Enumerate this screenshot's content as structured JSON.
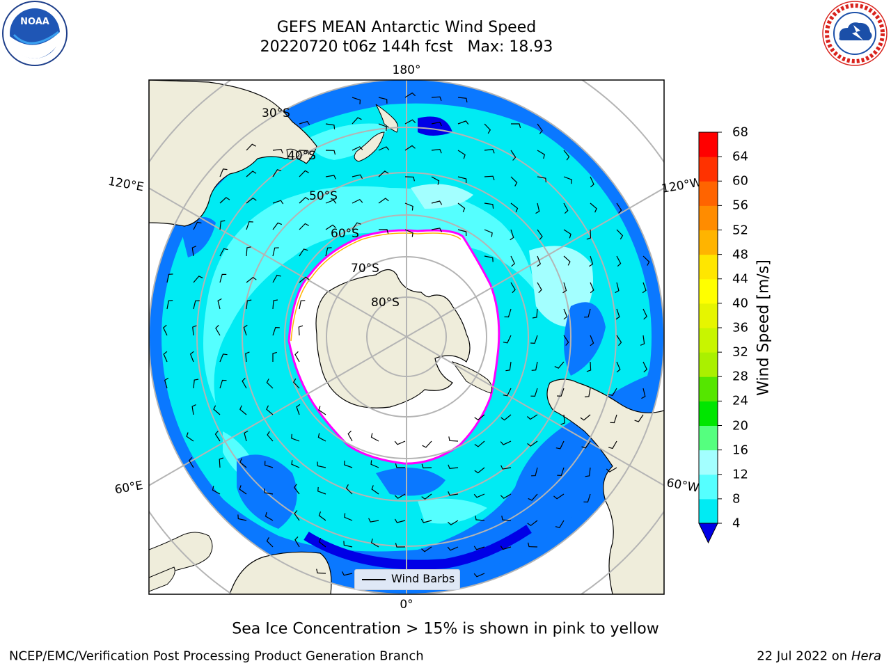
{
  "title": {
    "line1": "GEFS MEAN Antarctic Wind Speed",
    "line2": "20220720 t06z 144h fcst   Max: 18.93"
  },
  "logos": {
    "left": "NOAA",
    "left_ring_text": "NATIONAL OCEANIC AND ATMOSPHERIC ADMINISTRATION · U.S. DEPARTMENT OF COMMERCE",
    "right_ring_text": "NATIONAL WEATHER SERVICE"
  },
  "map": {
    "projection": "south-polar-stereographic",
    "longitude_labels": {
      "top": "180°",
      "bottom": "0°",
      "upper_left": "120°E",
      "upper_right": "120°W",
      "lower_left": "60°E",
      "lower_right": "60°W"
    },
    "latitude_labels": [
      "30°S",
      "40°S",
      "50°S",
      "60°S",
      "70°S",
      "80°S"
    ],
    "legend": "Wind Barbs",
    "colors": {
      "land": "#efeddb",
      "ocean_0_4": "#0000e6",
      "ocean_4_8": "#0a78ff",
      "ocean_8_12": "#00ebf3",
      "ocean_12_16": "#55ffff",
      "ocean_16_20": "#a3ffff",
      "ice_edge": "#ff00ff",
      "ice_fill": "#ffffff",
      "grid": "#b4b4b4"
    }
  },
  "colorbar": {
    "label": "Wind Speed [m/s]",
    "ticks": [
      "4",
      "8",
      "12",
      "16",
      "20",
      "24",
      "28",
      "32",
      "36",
      "40",
      "44",
      "48",
      "52",
      "56",
      "60",
      "64",
      "68"
    ],
    "colors": [
      "#0a78ff",
      "#00ebf3",
      "#55ffff",
      "#a3ffff",
      "#55ff7f",
      "#00e600",
      "#55e600",
      "#aaf000",
      "#c8f500",
      "#e6f500",
      "#ffff00",
      "#ffe600",
      "#ffb400",
      "#ff8c00",
      "#ff6400",
      "#ff3200",
      "#ff0000"
    ],
    "extend_min_color": "#0000e6"
  },
  "note": "Sea Ice Concentration > 15% is shown in pink to yellow",
  "footer": {
    "left": "NCEP/EMC/Verification Post Processing Product Generation Branch",
    "right_date": "22 Jul 2022 on",
    "right_host": "Hera"
  }
}
